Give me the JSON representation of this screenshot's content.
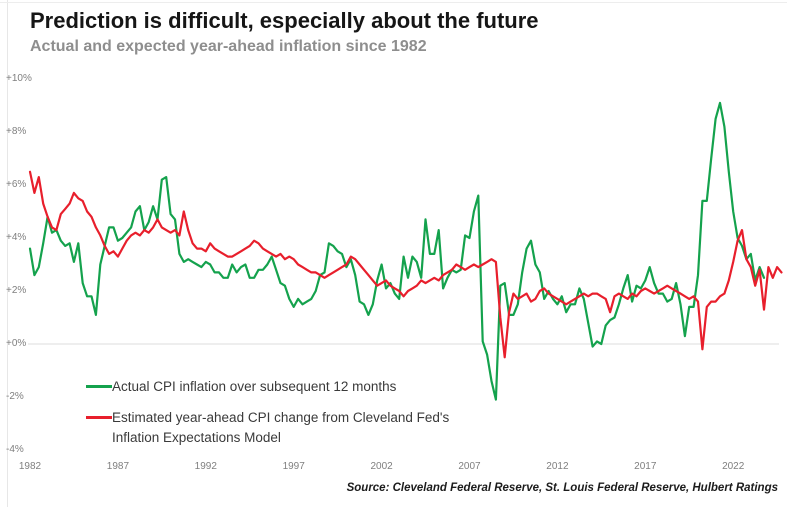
{
  "header": {
    "title": "Prediction is difficult, especially about the future",
    "subtitle": "Actual and expected year-ahead inflation since 1982"
  },
  "footer": {
    "source": "Source: Cleveland Federal Reserve, St. Louis Federal Reserve, Hulbert Ratings"
  },
  "legend": {
    "actual_label": "Actual CPI inflation over subsequent 12 months",
    "expected_label": "Estimated year-ahead CPI change from Cleveland Fed's Inflation Expectations Model"
  },
  "colors": {
    "actual": "#14a24d",
    "expected": "#e81f2c",
    "gridline": "#dedede",
    "axis_text": "#7f7f7f",
    "title": "#161616",
    "subtitle": "#8e8e8e"
  },
  "chart_data": {
    "type": "line",
    "title": "Actual and expected year-ahead inflation since 1982",
    "xlabel": "",
    "ylabel": "",
    "grid": "only zero line",
    "legend_position": "inside lower-left",
    "x_axis": {
      "tick_labels": [
        "1982",
        "1987",
        "1992",
        "1997",
        "2002",
        "2007",
        "2012",
        "2017",
        "2022"
      ],
      "tick_values": [
        1982,
        1987,
        1992,
        1997,
        2002,
        2007,
        2012,
        2017,
        2022
      ],
      "range": [
        1982,
        2025
      ]
    },
    "y_axis": {
      "tick_labels": [
        "+10%",
        "+8%",
        "+6%",
        "+4%",
        "+2%",
        "+0%",
        "-2%",
        "-4%"
      ],
      "tick_values": [
        10,
        8,
        6,
        4,
        2,
        0,
        -2,
        -4
      ],
      "range": [
        -4,
        10
      ],
      "gridline_at": 0,
      "unit": "percent"
    },
    "series": [
      {
        "name": "Actual CPI inflation over subsequent 12 months",
        "color_key": "actual",
        "x_start": 1982.0,
        "x_step": 0.25,
        "values": [
          3.6,
          2.6,
          2.9,
          3.8,
          4.8,
          4.2,
          4.3,
          3.9,
          3.7,
          3.8,
          3.1,
          3.8,
          2.3,
          1.8,
          1.8,
          1.1,
          3.0,
          3.7,
          4.4,
          4.4,
          3.9,
          4.0,
          4.2,
          4.4,
          5.0,
          5.2,
          4.3,
          4.6,
          5.2,
          4.7,
          6.2,
          6.3,
          4.9,
          4.7,
          3.4,
          3.1,
          3.2,
          3.1,
          3.0,
          2.9,
          3.1,
          3.0,
          2.7,
          2.7,
          2.5,
          2.5,
          3.0,
          2.7,
          2.9,
          3.0,
          2.5,
          2.5,
          2.8,
          2.8,
          3.0,
          3.3,
          2.8,
          2.3,
          2.2,
          1.7,
          1.4,
          1.7,
          1.5,
          1.6,
          1.7,
          2.0,
          2.6,
          2.7,
          3.8,
          3.7,
          3.5,
          3.4,
          2.9,
          3.2,
          2.6,
          1.6,
          1.5,
          1.1,
          1.5,
          2.4,
          3.0,
          2.1,
          2.3,
          1.9,
          1.7,
          3.3,
          2.5,
          3.3,
          3.1,
          2.5,
          4.7,
          3.4,
          3.4,
          4.3,
          2.1,
          2.5,
          2.8,
          2.7,
          2.8,
          4.1,
          4.0,
          5.0,
          5.6,
          0.1,
          -0.4,
          -1.4,
          -2.1,
          2.2,
          2.3,
          1.1,
          1.1,
          1.5,
          2.7,
          3.6,
          3.9,
          3.0,
          2.7,
          1.7,
          2.0,
          1.7,
          1.5,
          1.8,
          1.2,
          1.5,
          1.5,
          2.1,
          1.7,
          0.8,
          -0.1,
          0.1,
          0.0,
          0.7,
          0.9,
          1.0,
          1.5,
          2.1,
          2.6,
          1.6,
          2.2,
          2.1,
          2.4,
          2.9,
          2.3,
          1.9,
          1.9,
          1.6,
          1.7,
          2.3,
          1.5,
          0.3,
          1.4,
          1.4,
          2.6,
          5.4,
          5.4,
          7.0,
          8.5,
          9.1,
          8.2,
          6.5,
          5.0,
          4.0,
          3.7,
          3.2,
          3.4,
          2.4,
          2.9,
          2.5
        ]
      },
      {
        "name": "Estimated year-ahead CPI change from Cleveland Fed's Inflation Expectations Model",
        "color_key": "expected",
        "x_start": 1982.0,
        "x_step": 0.25,
        "values": [
          6.5,
          5.7,
          6.3,
          5.3,
          4.8,
          4.4,
          4.3,
          4.9,
          5.1,
          5.3,
          5.7,
          5.5,
          5.4,
          5.0,
          4.8,
          4.4,
          4.1,
          3.7,
          3.4,
          3.5,
          3.3,
          3.6,
          3.9,
          4.1,
          4.2,
          4.1,
          4.3,
          4.2,
          4.4,
          4.7,
          4.4,
          4.3,
          4.2,
          4.3,
          4.1,
          5.0,
          4.3,
          3.8,
          3.6,
          3.6,
          3.5,
          3.8,
          3.6,
          3.5,
          3.4,
          3.3,
          3.3,
          3.4,
          3.5,
          3.6,
          3.7,
          3.9,
          3.8,
          3.6,
          3.5,
          3.4,
          3.3,
          3.4,
          3.2,
          3.3,
          3.2,
          3.0,
          2.9,
          2.8,
          2.7,
          2.7,
          2.6,
          2.5,
          2.6,
          2.7,
          2.8,
          2.9,
          3.0,
          3.3,
          3.2,
          3.0,
          2.8,
          2.6,
          2.4,
          2.2,
          2.3,
          2.4,
          2.2,
          2.1,
          2.0,
          1.8,
          2.0,
          2.1,
          2.2,
          2.4,
          2.3,
          2.4,
          2.5,
          2.4,
          2.6,
          2.7,
          2.8,
          3.0,
          2.9,
          2.8,
          2.9,
          3.0,
          2.9,
          3.0,
          3.1,
          3.2,
          3.1,
          1.0,
          -0.5,
          1.2,
          1.9,
          1.7,
          1.8,
          1.9,
          1.6,
          1.7,
          2.0,
          2.1,
          1.9,
          1.8,
          1.7,
          1.6,
          1.5,
          1.6,
          1.7,
          1.8,
          1.9,
          1.8,
          1.9,
          1.9,
          1.8,
          1.7,
          1.2,
          1.8,
          1.9,
          1.8,
          1.7,
          1.9,
          1.8,
          2.0,
          2.1,
          2.0,
          1.9,
          2.0,
          2.1,
          2.2,
          2.1,
          2.0,
          1.9,
          1.8,
          1.7,
          1.8,
          1.6,
          -0.2,
          1.4,
          1.6,
          1.6,
          1.8,
          1.9,
          2.4,
          3.1,
          3.9,
          4.3,
          3.2,
          2.9,
          2.2,
          2.8,
          1.3,
          2.9,
          2.5,
          2.9,
          2.7
        ]
      }
    ]
  }
}
